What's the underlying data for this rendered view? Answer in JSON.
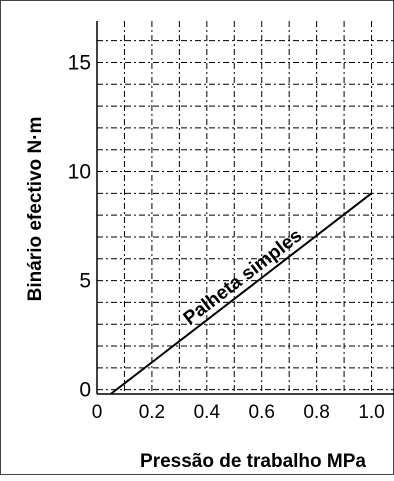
{
  "chart_data": {
    "type": "line",
    "title": "",
    "xlabel": "Pressão de trabalho MPa",
    "ylabel": "Binário efectivo N·m",
    "xlim": [
      0,
      1.1
    ],
    "ylim": [
      -0.2,
      16.9
    ],
    "x_ticks": [
      "0",
      "0.2",
      "0.4",
      "0.6",
      "0.8",
      "1.0"
    ],
    "x_tick_values": [
      0,
      0.2,
      0.4,
      0.6,
      0.8,
      1.0
    ],
    "y_ticks": [
      "0",
      "5",
      "10",
      "15"
    ],
    "y_tick_values": [
      0,
      5,
      10,
      15
    ],
    "x_grid_step": 0.1,
    "y_grid_step": 1,
    "grid": "dashed",
    "series": [
      {
        "name": "Palheta simples",
        "x": [
          0.05,
          1.0
        ],
        "y": [
          -0.2,
          9.0
        ],
        "color": "#000000"
      }
    ],
    "annotations": [
      {
        "text": "Palheta simples",
        "series_index": 0
      }
    ]
  }
}
